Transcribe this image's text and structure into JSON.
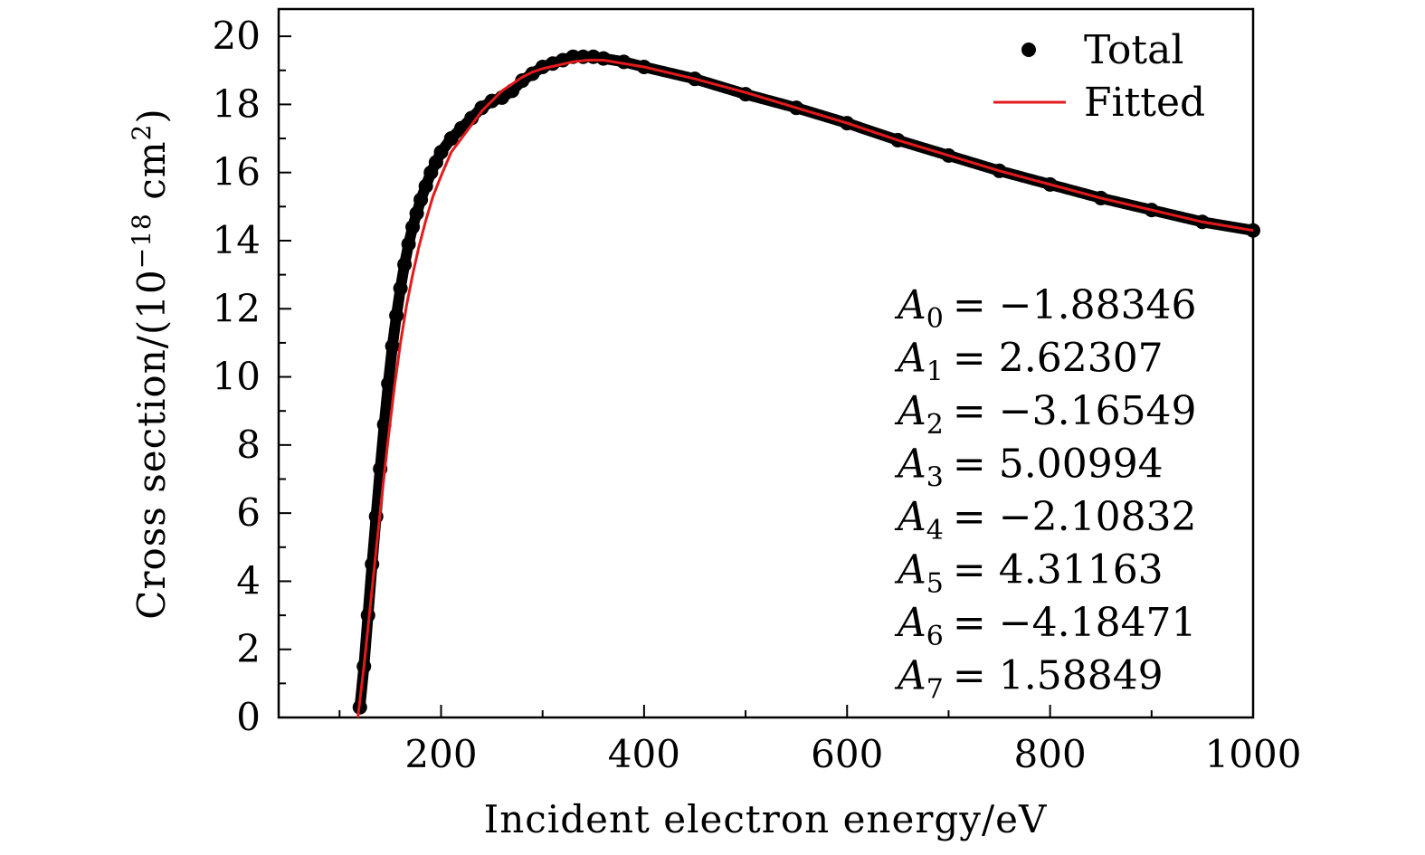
{
  "chart_data": {
    "type": "scatter",
    "title": "",
    "xlabel": "Incident electron energy/eV",
    "ylabel_main": "Cross section/(10",
    "ylabel_exp": "−18",
    "ylabel_unit": " cm",
    "ylabel_unit_exp": "2",
    "ylabel_close": ")",
    "xlim": [
      40,
      1000
    ],
    "ylim": [
      0,
      20.8
    ],
    "xticks": [
      200,
      400,
      600,
      800,
      1000
    ],
    "xtick_labels": [
      "200",
      "400",
      "600",
      "800",
      "1000"
    ],
    "yticks": [
      0,
      2,
      4,
      6,
      8,
      10,
      12,
      14,
      16,
      18,
      20
    ],
    "ytick_labels": [
      "0",
      "2",
      "4",
      "6",
      "8",
      "10",
      "12",
      "14",
      "16",
      "18",
      "20"
    ],
    "legend": {
      "placement": "top-right",
      "entries": [
        "Total",
        "Fitted"
      ]
    },
    "series": [
      {
        "name": "Total",
        "kind": "points",
        "color": "#000000",
        "x": [
          120,
          124,
          128,
          132,
          136,
          140,
          144,
          148,
          152,
          156,
          160,
          164,
          168,
          172,
          176,
          180,
          185,
          190,
          195,
          200,
          210,
          220,
          230,
          240,
          250,
          260,
          270,
          280,
          290,
          300,
          310,
          320,
          330,
          340,
          350,
          360,
          380,
          400,
          450,
          500,
          550,
          600,
          650,
          700,
          750,
          800,
          850,
          900,
          950,
          1000
        ],
        "y": [
          0.3,
          1.5,
          3.0,
          4.5,
          5.9,
          7.3,
          8.6,
          9.8,
          10.9,
          11.8,
          12.6,
          13.3,
          13.9,
          14.4,
          14.8,
          15.2,
          15.6,
          16.0,
          16.3,
          16.6,
          17.0,
          17.3,
          17.6,
          17.9,
          18.1,
          18.2,
          18.4,
          18.7,
          18.9,
          19.1,
          19.2,
          19.3,
          19.4,
          19.4,
          19.4,
          19.35,
          19.25,
          19.1,
          18.75,
          18.3,
          17.9,
          17.45,
          16.95,
          16.5,
          16.05,
          15.65,
          15.25,
          14.9,
          14.55,
          14.3
        ]
      },
      {
        "name": "Fitted",
        "kind": "line",
        "color": "#e31a1c",
        "x": [
          118,
          124,
          130,
          136,
          142,
          148,
          154,
          160,
          166,
          172,
          178,
          185,
          192,
          200,
          210,
          220,
          230,
          240,
          250,
          260,
          270,
          280,
          290,
          300,
          315,
          330,
          345,
          360,
          380,
          400,
          450,
          500,
          550,
          600,
          650,
          700,
          750,
          800,
          850,
          900,
          950,
          1000
        ],
        "y": [
          0.0,
          1.5,
          3.2,
          4.9,
          6.6,
          8.2,
          9.7,
          11.0,
          12.1,
          13.0,
          13.8,
          14.6,
          15.3,
          15.9,
          16.6,
          17.0,
          17.4,
          17.8,
          18.1,
          18.4,
          18.6,
          18.8,
          18.95,
          19.05,
          19.15,
          19.25,
          19.3,
          19.3,
          19.2,
          19.1,
          18.75,
          18.35,
          17.9,
          17.45,
          16.95,
          16.5,
          16.05,
          15.65,
          15.25,
          14.9,
          14.55,
          14.3
        ]
      }
    ],
    "annotations": [
      {
        "var": "A",
        "sub": "0",
        "value": "= −1.88346"
      },
      {
        "var": "A",
        "sub": "1",
        "value": "= 2.62307"
      },
      {
        "var": "A",
        "sub": "2",
        "value": "= −3.16549"
      },
      {
        "var": "A",
        "sub": "3",
        "value": "= 5.00994"
      },
      {
        "var": "A",
        "sub": "4",
        "value": "= −2.10832"
      },
      {
        "var": "A",
        "sub": "5",
        "value": "= 4.31163"
      },
      {
        "var": "A",
        "sub": "6",
        "value": "= −4.18471"
      },
      {
        "var": "A",
        "sub": "7",
        "value": "= 1.58849"
      }
    ]
  }
}
